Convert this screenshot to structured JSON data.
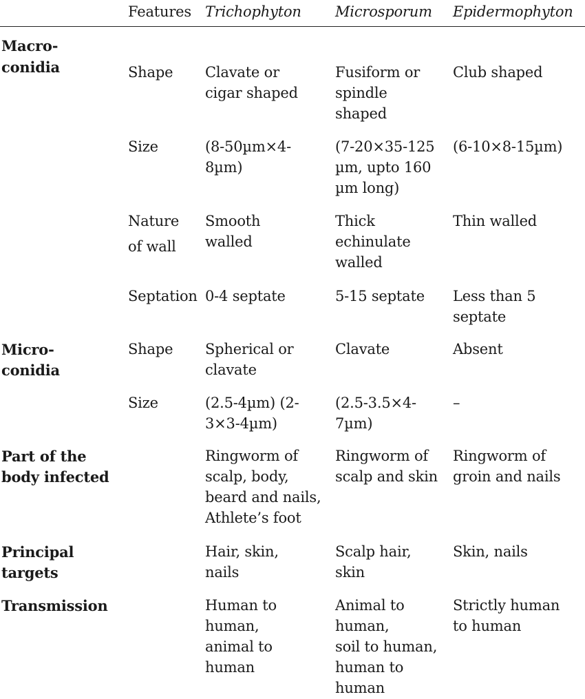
{
  "header": {
    "features": "Features",
    "trichophyton": "Trichophyton",
    "microsporum": "Microsporum",
    "epidermophyton": "Epidermophyton"
  },
  "macroconidia": {
    "label": [
      "Macro-",
      "conidia"
    ],
    "shape": {
      "feature": "Shape",
      "trichophyton": [
        "Clavate or",
        "cigar shaped"
      ],
      "microsporum": [
        "Fusiform or",
        "spindle",
        "shaped"
      ],
      "epidermophyton": [
        "Club shaped"
      ]
    },
    "size": {
      "feature": "Size",
      "trichophyton": [
        "(8-50µm×4-",
        "8µm)"
      ],
      "microsporum": [
        "(7-20×35-125",
        "µm, upto 160",
        "µm long)"
      ],
      "epidermophyton": [
        "(6-10×8-15µm)"
      ]
    },
    "wall": {
      "feature": [
        "Nature",
        "of wall"
      ],
      "trichophyton": [
        "Smooth",
        "walled"
      ],
      "microsporum": [
        "Thick",
        "echinulate",
        "walled"
      ],
      "epidermophyton": [
        "Thin walled"
      ]
    },
    "septation": {
      "feature": "Septation",
      "trichophyton": [
        "0-4 septate"
      ],
      "microsporum": [
        "5-15 septate"
      ],
      "epidermophyton": [
        "Less than 5",
        "septate"
      ]
    }
  },
  "microconidia": {
    "label": [
      "Micro-",
      "conidia"
    ],
    "shape": {
      "feature": "Shape",
      "trichophyton": [
        "Spherical or",
        "clavate"
      ],
      "microsporum": [
        "Clavate"
      ],
      "epidermophyton": [
        "Absent"
      ]
    },
    "size": {
      "feature": "Size",
      "trichophyton": [
        "(2.5-4µm) (2-",
        "3×3-4µm)"
      ],
      "microsporum": [
        "(2.5-3.5×4-",
        "7µm)"
      ],
      "epidermophyton": [
        "–"
      ]
    }
  },
  "body_part": {
    "label": [
      "Part of the",
      "body infected"
    ],
    "trichophyton": [
      "Ringworm of",
      "scalp, body,",
      "beard and nails,",
      "Athlete’s foot"
    ],
    "microsporum": [
      "Ringworm of",
      "scalp and skin"
    ],
    "epidermophyton": [
      "Ringworm of",
      "groin and nails"
    ]
  },
  "targets": {
    "label": [
      "Principal",
      "targets"
    ],
    "trichophyton": [
      "Hair, skin,",
      "nails"
    ],
    "microsporum": [
      "Scalp hair,",
      "skin"
    ],
    "epidermophyton": [
      "Skin, nails"
    ]
  },
  "transmission": {
    "label": [
      "Transmission"
    ],
    "trichophyton": [
      "Human to",
      "human,",
      "animal to",
      "human"
    ],
    "microsporum": [
      "Animal to",
      "human,",
      "soil to human,",
      "human to",
      "human"
    ],
    "epidermophyton": [
      "Strictly human",
      "to human"
    ]
  }
}
